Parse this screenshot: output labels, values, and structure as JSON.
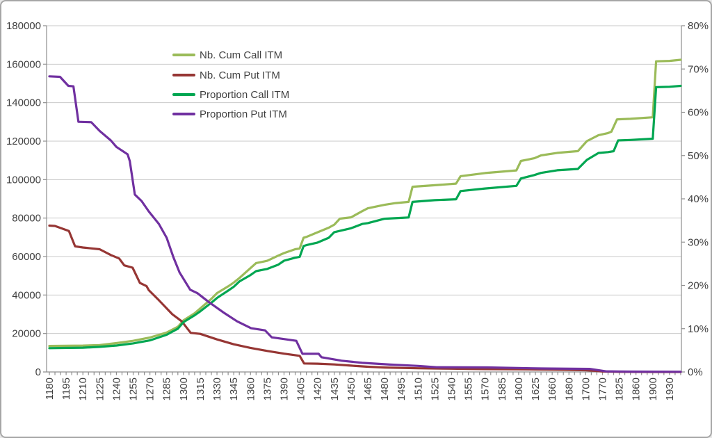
{
  "chart_data": {
    "type": "line",
    "title": "",
    "background_color": "#FFFFFF",
    "frame_border_color": "#A6A6A6",
    "grid_color": "#C9C9C9",
    "axis_color": "#8E8E8E",
    "text_color": "#3F3F3F",
    "grid": "horizontal-only",
    "legend": {
      "position": "inside-top-left",
      "transparent": true,
      "items": [
        {
          "label": "Nb. Cum Call ITM",
          "color": "#9BBB59"
        },
        {
          "label": "Nb. Cum Put ITM",
          "color": "#963634"
        },
        {
          "label": "Proportion Call ITM",
          "color": "#00A651"
        },
        {
          "label": "Proportion Put ITM",
          "color": "#7030A0"
        }
      ]
    },
    "x_axis": {
      "type": "category",
      "label_rotation_deg": -90,
      "ticks_per_label": 3,
      "total_categories": 114,
      "x_unit": "category-index; x tick label j sits at category index 3*j",
      "tick_labels": [
        "1180",
        "1195",
        "1210",
        "1225",
        "1240",
        "1255",
        "1270",
        "1285",
        "1300",
        "1315",
        "1330",
        "1345",
        "1360",
        "1375",
        "1390",
        "1405",
        "1420",
        "1435",
        "1450",
        "1465",
        "1480",
        "1495",
        "1510",
        "1525",
        "1540",
        "1555",
        "1570",
        "1585",
        "1600",
        "1625",
        "1660",
        "1680",
        "1700",
        "1770",
        "1825",
        "1860",
        "1900",
        "1930"
      ]
    },
    "y_axis_left": {
      "min": 0,
      "max": 180000,
      "step": 20000,
      "tick_labels": [
        "0",
        "20000",
        "40000",
        "60000",
        "80000",
        "100000",
        "120000",
        "140000",
        "160000",
        "180000"
      ]
    },
    "y_axis_right": {
      "min": 0,
      "max": 80,
      "step": 10,
      "unit": "%",
      "tick_labels": [
        "0%",
        "10%",
        "20%",
        "30%",
        "40%",
        "50%",
        "60%",
        "70%",
        "80%"
      ]
    },
    "series": [
      {
        "name": "Nb. Cum Call ITM",
        "axis": "left",
        "color": "#9BBB59",
        "points": [
          [
            0,
            13500
          ],
          [
            6,
            13700
          ],
          [
            9,
            14000
          ],
          [
            12,
            15000
          ],
          [
            15,
            16200
          ],
          [
            18,
            17900
          ],
          [
            21,
            20500
          ],
          [
            23,
            23500
          ],
          [
            24,
            26800
          ],
          [
            26,
            30500
          ],
          [
            27,
            33000
          ],
          [
            29,
            38000
          ],
          [
            30,
            41000
          ],
          [
            32,
            44500
          ],
          [
            33,
            46500
          ],
          [
            34,
            48800
          ],
          [
            36,
            54000
          ],
          [
            37,
            56600
          ],
          [
            39,
            57800
          ],
          [
            41,
            60500
          ],
          [
            42,
            61800
          ],
          [
            44,
            63800
          ],
          [
            44.8,
            64200
          ],
          [
            45.5,
            69800
          ],
          [
            46,
            70200
          ],
          [
            48,
            72600
          ],
          [
            50,
            75000
          ],
          [
            51,
            76600
          ],
          [
            52,
            79700
          ],
          [
            54,
            80400
          ],
          [
            56,
            83600
          ],
          [
            57,
            85100
          ],
          [
            60,
            86900
          ],
          [
            62,
            87800
          ],
          [
            64.3,
            88400
          ],
          [
            65,
            96300
          ],
          [
            69,
            97100
          ],
          [
            72.8,
            97900
          ],
          [
            73.6,
            101800
          ],
          [
            78,
            103400
          ],
          [
            83.6,
            104800
          ],
          [
            84.4,
            109700
          ],
          [
            86.8,
            111100
          ],
          [
            88,
            112600
          ],
          [
            90.9,
            113900
          ],
          [
            94.6,
            114800
          ],
          [
            96.2,
            120000
          ],
          [
            98.3,
            123100
          ],
          [
            100,
            124200
          ],
          [
            100.6,
            124900
          ],
          [
            101.6,
            131300
          ],
          [
            104,
            131600
          ],
          [
            108,
            132400
          ],
          [
            108.6,
            161500
          ],
          [
            111,
            161700
          ],
          [
            113,
            162300
          ]
        ]
      },
      {
        "name": "Nb. Cum Put ITM",
        "axis": "left",
        "color": "#963634",
        "points": [
          [
            0,
            76100
          ],
          [
            1,
            75900
          ],
          [
            3.5,
            73300
          ],
          [
            4.6,
            65300
          ],
          [
            6,
            64700
          ],
          [
            9,
            63800
          ],
          [
            11,
            60800
          ],
          [
            12.5,
            59000
          ],
          [
            13.4,
            55400
          ],
          [
            14.9,
            54200
          ],
          [
            16.2,
            46300
          ],
          [
            17.4,
            44600
          ],
          [
            17.8,
            42500
          ],
          [
            19.6,
            37300
          ],
          [
            22,
            30000
          ],
          [
            23.7,
            26300
          ],
          [
            25.3,
            20300
          ],
          [
            27,
            19800
          ],
          [
            30,
            16900
          ],
          [
            33,
            14400
          ],
          [
            36,
            12500
          ],
          [
            39,
            10900
          ],
          [
            42,
            9500
          ],
          [
            44.8,
            8400
          ],
          [
            45.6,
            4400
          ],
          [
            48,
            4300
          ],
          [
            51,
            3900
          ],
          [
            54,
            3300
          ],
          [
            57,
            2700
          ],
          [
            60,
            2300
          ],
          [
            63,
            2100
          ],
          [
            66,
            1900
          ],
          [
            69,
            1800
          ],
          [
            72,
            1700
          ],
          [
            75,
            1600
          ],
          [
            78,
            1500
          ],
          [
            81,
            1450
          ],
          [
            84,
            1400
          ],
          [
            87,
            1300
          ],
          [
            90,
            1200
          ],
          [
            93,
            1100
          ],
          [
            96,
            900
          ],
          [
            97.5,
            600
          ],
          [
            99,
            250
          ],
          [
            102,
            80
          ],
          [
            105,
            30
          ],
          [
            108,
            10
          ],
          [
            113,
            5
          ]
        ]
      },
      {
        "name": "Proportion Call ITM",
        "axis": "right",
        "color": "#00A651",
        "points": [
          [
            0,
            5.5
          ],
          [
            6,
            5.6
          ],
          [
            9,
            5.8
          ],
          [
            12,
            6.1
          ],
          [
            15,
            6.6
          ],
          [
            18,
            7.3
          ],
          [
            21,
            8.6
          ],
          [
            23,
            10.0
          ],
          [
            24,
            11.5
          ],
          [
            26,
            13.1
          ],
          [
            27,
            14.0
          ],
          [
            29,
            16.0
          ],
          [
            30,
            17.1
          ],
          [
            32,
            18.8
          ],
          [
            33,
            19.7
          ],
          [
            34,
            20.9
          ],
          [
            36,
            22.4
          ],
          [
            37,
            23.3
          ],
          [
            39,
            23.8
          ],
          [
            41,
            24.8
          ],
          [
            42,
            25.7
          ],
          [
            44,
            26.4
          ],
          [
            44.8,
            26.6
          ],
          [
            45.5,
            29.1
          ],
          [
            46,
            29.3
          ],
          [
            48,
            29.9
          ],
          [
            50,
            31.0
          ],
          [
            51,
            32.3
          ],
          [
            52,
            32.6
          ],
          [
            54,
            33.2
          ],
          [
            56,
            34.2
          ],
          [
            57,
            34.4
          ],
          [
            60,
            35.4
          ],
          [
            63,
            35.6
          ],
          [
            64.3,
            35.7
          ],
          [
            65,
            39.3
          ],
          [
            69,
            39.7
          ],
          [
            72.8,
            39.9
          ],
          [
            73.6,
            41.8
          ],
          [
            78,
            42.4
          ],
          [
            83.6,
            43.0
          ],
          [
            84.4,
            44.7
          ],
          [
            86.8,
            45.5
          ],
          [
            88,
            46.0
          ],
          [
            90.9,
            46.6
          ],
          [
            94.6,
            46.9
          ],
          [
            96.2,
            49.0
          ],
          [
            98.3,
            50.6
          ],
          [
            100,
            50.8
          ],
          [
            101,
            51.0
          ],
          [
            101.8,
            53.5
          ],
          [
            104,
            53.6
          ],
          [
            108,
            53.9
          ],
          [
            108.6,
            65.8
          ],
          [
            111,
            65.9
          ],
          [
            113,
            66.1
          ]
        ]
      },
      {
        "name": "Proportion Put ITM",
        "axis": "right",
        "color": "#7030A0",
        "points": [
          [
            0,
            68.3
          ],
          [
            1.9,
            68.2
          ],
          [
            3.4,
            66.1
          ],
          [
            4.3,
            66.0
          ],
          [
            5.2,
            57.8
          ],
          [
            7.5,
            57.7
          ],
          [
            9,
            55.7
          ],
          [
            11,
            53.5
          ],
          [
            12,
            52.0
          ],
          [
            14,
            50.3
          ],
          [
            14.4,
            48.7
          ],
          [
            15.3,
            41.0
          ],
          [
            16.5,
            39.5
          ],
          [
            17.8,
            37.1
          ],
          [
            19.6,
            34.2
          ],
          [
            21,
            31.0
          ],
          [
            22.2,
            26.5
          ],
          [
            23.3,
            23.0
          ],
          [
            25.2,
            19.0
          ],
          [
            26.5,
            18.2
          ],
          [
            28.6,
            16.1
          ],
          [
            31.1,
            13.8
          ],
          [
            33.6,
            11.7
          ],
          [
            36.1,
            10.1
          ],
          [
            38.6,
            9.6
          ],
          [
            39.8,
            8.0
          ],
          [
            44.2,
            7.2
          ],
          [
            45.3,
            4.2
          ],
          [
            48.2,
            4.2
          ],
          [
            48.7,
            3.4
          ],
          [
            52.3,
            2.6
          ],
          [
            56,
            2.1
          ],
          [
            61,
            1.7
          ],
          [
            66,
            1.4
          ],
          [
            69.3,
            1.1
          ],
          [
            78.4,
            1.05
          ],
          [
            88.2,
            0.8
          ],
          [
            96.7,
            0.7
          ],
          [
            99.6,
            0.15
          ],
          [
            104,
            0.08
          ],
          [
            113,
            0.05
          ]
        ]
      }
    ]
  }
}
